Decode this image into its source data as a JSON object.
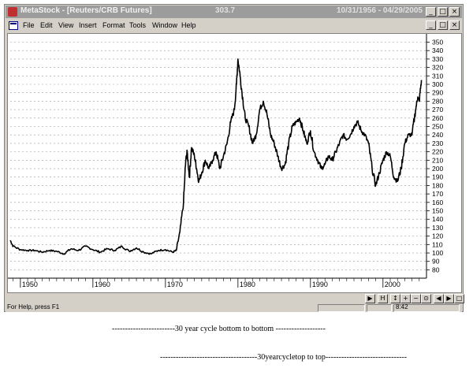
{
  "window": {
    "title": "MetaStock - [Reuters/CRB Futures]",
    "price": "303.7",
    "date_range": "10/31/1956 - 04/29/2005",
    "buttons": {
      "minimize": "_",
      "maximize": "□",
      "close": "×"
    }
  },
  "menu": {
    "items": [
      "File",
      "Edit",
      "View",
      "Insert",
      "Format",
      "Tools",
      "Window",
      "Help"
    ]
  },
  "status": {
    "help_text": "For Help, press F1",
    "time": "8:42"
  },
  "captions": {
    "line1": "------------------------30  year cycle bottom to bottom -------------------",
    "line2": "-------------------------------------30yearcycletop to top-------------------------------"
  },
  "chart_data": {
    "type": "line",
    "title": "",
    "xlabel": "",
    "ylabel": "",
    "x_ticks": [
      "1950",
      "1960",
      "1970",
      "1980",
      "1990",
      "2000"
    ],
    "y_ticks": [
      80,
      90,
      100,
      110,
      120,
      130,
      140,
      150,
      160,
      170,
      180,
      190,
      200,
      210,
      220,
      230,
      240,
      250,
      260,
      270,
      280,
      290,
      300,
      310,
      320,
      330,
      340,
      350
    ],
    "xlim": [
      1948.6,
      2006.0
    ],
    "ylim": [
      72,
      357
    ],
    "grid": true,
    "series": [
      {
        "x": [
          1948.6,
          1949.0,
          1950.0,
          1951.0,
          1952.0,
          1953.0,
          1954.0,
          1955.0,
          1956.0,
          1957.0,
          1958.0,
          1959.0,
          1960.0,
          1961.0,
          1962.0,
          1963.0,
          1964.0,
          1965.0,
          1966.0,
          1967.0,
          1968.0,
          1969.0,
          1970.0,
          1971.0,
          1971.5,
          1972.0,
          1972.5,
          1972.8,
          1973.0,
          1973.3,
          1973.6,
          1974.0,
          1974.3,
          1974.6,
          1975.0,
          1975.5,
          1976.0,
          1976.5,
          1977.0,
          1977.5,
          1978.0,
          1978.5,
          1979.0,
          1979.5,
          1979.8,
          1980.0,
          1980.3,
          1980.7,
          1981.0,
          1981.5,
          1982.0,
          1982.5,
          1983.0,
          1983.5,
          1984.0,
          1984.5,
          1985.0,
          1985.5,
          1986.0,
          1986.5,
          1987.0,
          1987.5,
          1988.0,
          1988.5,
          1989.0,
          1989.5,
          1990.0,
          1990.5,
          1991.0,
          1991.5,
          1992.0,
          1992.5,
          1993.0,
          1993.5,
          1994.0,
          1994.5,
          1995.0,
          1995.5,
          1996.0,
          1996.5,
          1997.0,
          1997.5,
          1998.0,
          1998.5,
          1999.0,
          1999.5,
          2000.0,
          2000.5,
          2001.0,
          2001.5,
          2002.0,
          2002.5,
          2003.0,
          2003.5,
          2004.0,
          2004.5,
          2004.8,
          2005.0,
          2005.3
        ],
        "values": [
          115,
          108,
          104,
          103,
          103,
          101,
          103,
          102,
          99,
          105,
          103,
          108,
          104,
          101,
          105,
          103,
          108,
          102,
          106,
          101,
          99,
          103,
          104,
          101,
          103,
          125,
          160,
          210,
          220,
          190,
          225,
          215,
          200,
          185,
          195,
          210,
          200,
          210,
          220,
          200,
          215,
          230,
          255,
          270,
          300,
          330,
          310,
          280,
          260,
          250,
          230,
          240,
          270,
          280,
          265,
          240,
          230,
          215,
          200,
          205,
          230,
          250,
          255,
          260,
          245,
          230,
          245,
          220,
          210,
          200,
          205,
          215,
          210,
          220,
          230,
          240,
          235,
          240,
          250,
          255,
          245,
          240,
          230,
          200,
          180,
          195,
          210,
          220,
          215,
          190,
          185,
          200,
          230,
          240,
          240,
          270,
          285,
          280,
          305
        ]
      }
    ]
  }
}
